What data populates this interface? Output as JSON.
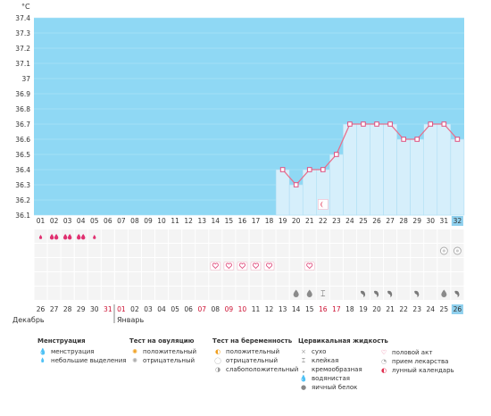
{
  "chart_data": {
    "type": "line",
    "unit_label": "°C",
    "ylim": [
      36.1,
      37.4
    ],
    "y_ticks": [
      "36.1",
      "36.2",
      "36.3",
      "36.4",
      "36.5",
      "36.6",
      "36.7",
      "36.8",
      "36.9",
      "37",
      "37.1",
      "37.2",
      "37.3",
      "37.4"
    ],
    "cycle_days": [
      "01",
      "02",
      "03",
      "04",
      "05",
      "06",
      "07",
      "08",
      "09",
      "10",
      "11",
      "12",
      "13",
      "14",
      "15",
      "16",
      "17",
      "18",
      "19",
      "20",
      "21",
      "22",
      "23",
      "24",
      "25",
      "26",
      "27",
      "28",
      "29",
      "30",
      "31",
      "32"
    ],
    "dates": [
      "26",
      "27",
      "28",
      "29",
      "30",
      "31",
      "01",
      "02",
      "03",
      "04",
      "05",
      "06",
      "07",
      "08",
      "09",
      "10",
      "11",
      "12",
      "13",
      "14",
      "15",
      "16",
      "17",
      "18",
      "19",
      "20",
      "21",
      "22",
      "23",
      "24",
      "25",
      "26"
    ],
    "red_dates_idx": [
      5,
      6,
      12,
      14,
      15,
      21,
      22
    ],
    "temperatures": [
      null,
      null,
      null,
      null,
      null,
      null,
      null,
      null,
      null,
      null,
      null,
      null,
      null,
      null,
      null,
      null,
      null,
      null,
      36.4,
      36.3,
      36.4,
      36.4,
      36.5,
      36.7,
      36.7,
      36.7,
      36.7,
      36.6,
      36.6,
      36.7,
      36.7,
      36.6
    ],
    "current_index": 31,
    "menstruation": [
      "small",
      "heavy",
      "heavy",
      "heavy",
      "small",
      null,
      null,
      null,
      null,
      null,
      null,
      null,
      null,
      null,
      null,
      null,
      null,
      null,
      null,
      null,
      null,
      null,
      null,
      null,
      null,
      null,
      null,
      null,
      null,
      null,
      null,
      null
    ],
    "ovulation_negative_idx": [
      30,
      31
    ],
    "intercourse_idx": [
      13,
      14,
      15,
      16,
      17,
      20
    ],
    "mucus": [
      null,
      null,
      null,
      null,
      null,
      null,
      null,
      null,
      null,
      null,
      null,
      null,
      null,
      null,
      null,
      null,
      null,
      null,
      null,
      "egg",
      "egg",
      "sticky",
      null,
      null,
      "creamy",
      "creamy",
      "creamy",
      null,
      "creamy",
      null,
      "egg",
      "creamy"
    ],
    "lunar_calendar_idx": [
      21
    ]
  },
  "months": {
    "dec": "Декабрь",
    "jan": "Январь"
  },
  "legend": {
    "menstruation": {
      "title": "Менструация",
      "items": [
        "менструация",
        "небольшие выделения"
      ]
    },
    "ovulation": {
      "title": "Тест на овуляцию",
      "items": [
        "положительный",
        "отрицательный"
      ]
    },
    "pregnancy": {
      "title": "Тест на беременность",
      "items": [
        "положительный",
        "отрицательный",
        "слабоположительный"
      ]
    },
    "mucus": {
      "title": "Цервикальная жидкость",
      "items": [
        "сухо",
        "клейкая",
        "кремообразная",
        "водянистая",
        "яичный белок"
      ]
    },
    "other": {
      "items": [
        "половой акт",
        "прием лекарства",
        "лунный календарь"
      ]
    }
  },
  "colors": {
    "plot_bg": "#8fd8f4",
    "bar_fill": "#d6effb",
    "bar_edge": "#a9dcf3",
    "line": "#e8708c",
    "marker": "#e05080",
    "red_text": "#cc1133",
    "current_cell": "#8fd0ee",
    "icon_gray": "#8a8a8a"
  }
}
